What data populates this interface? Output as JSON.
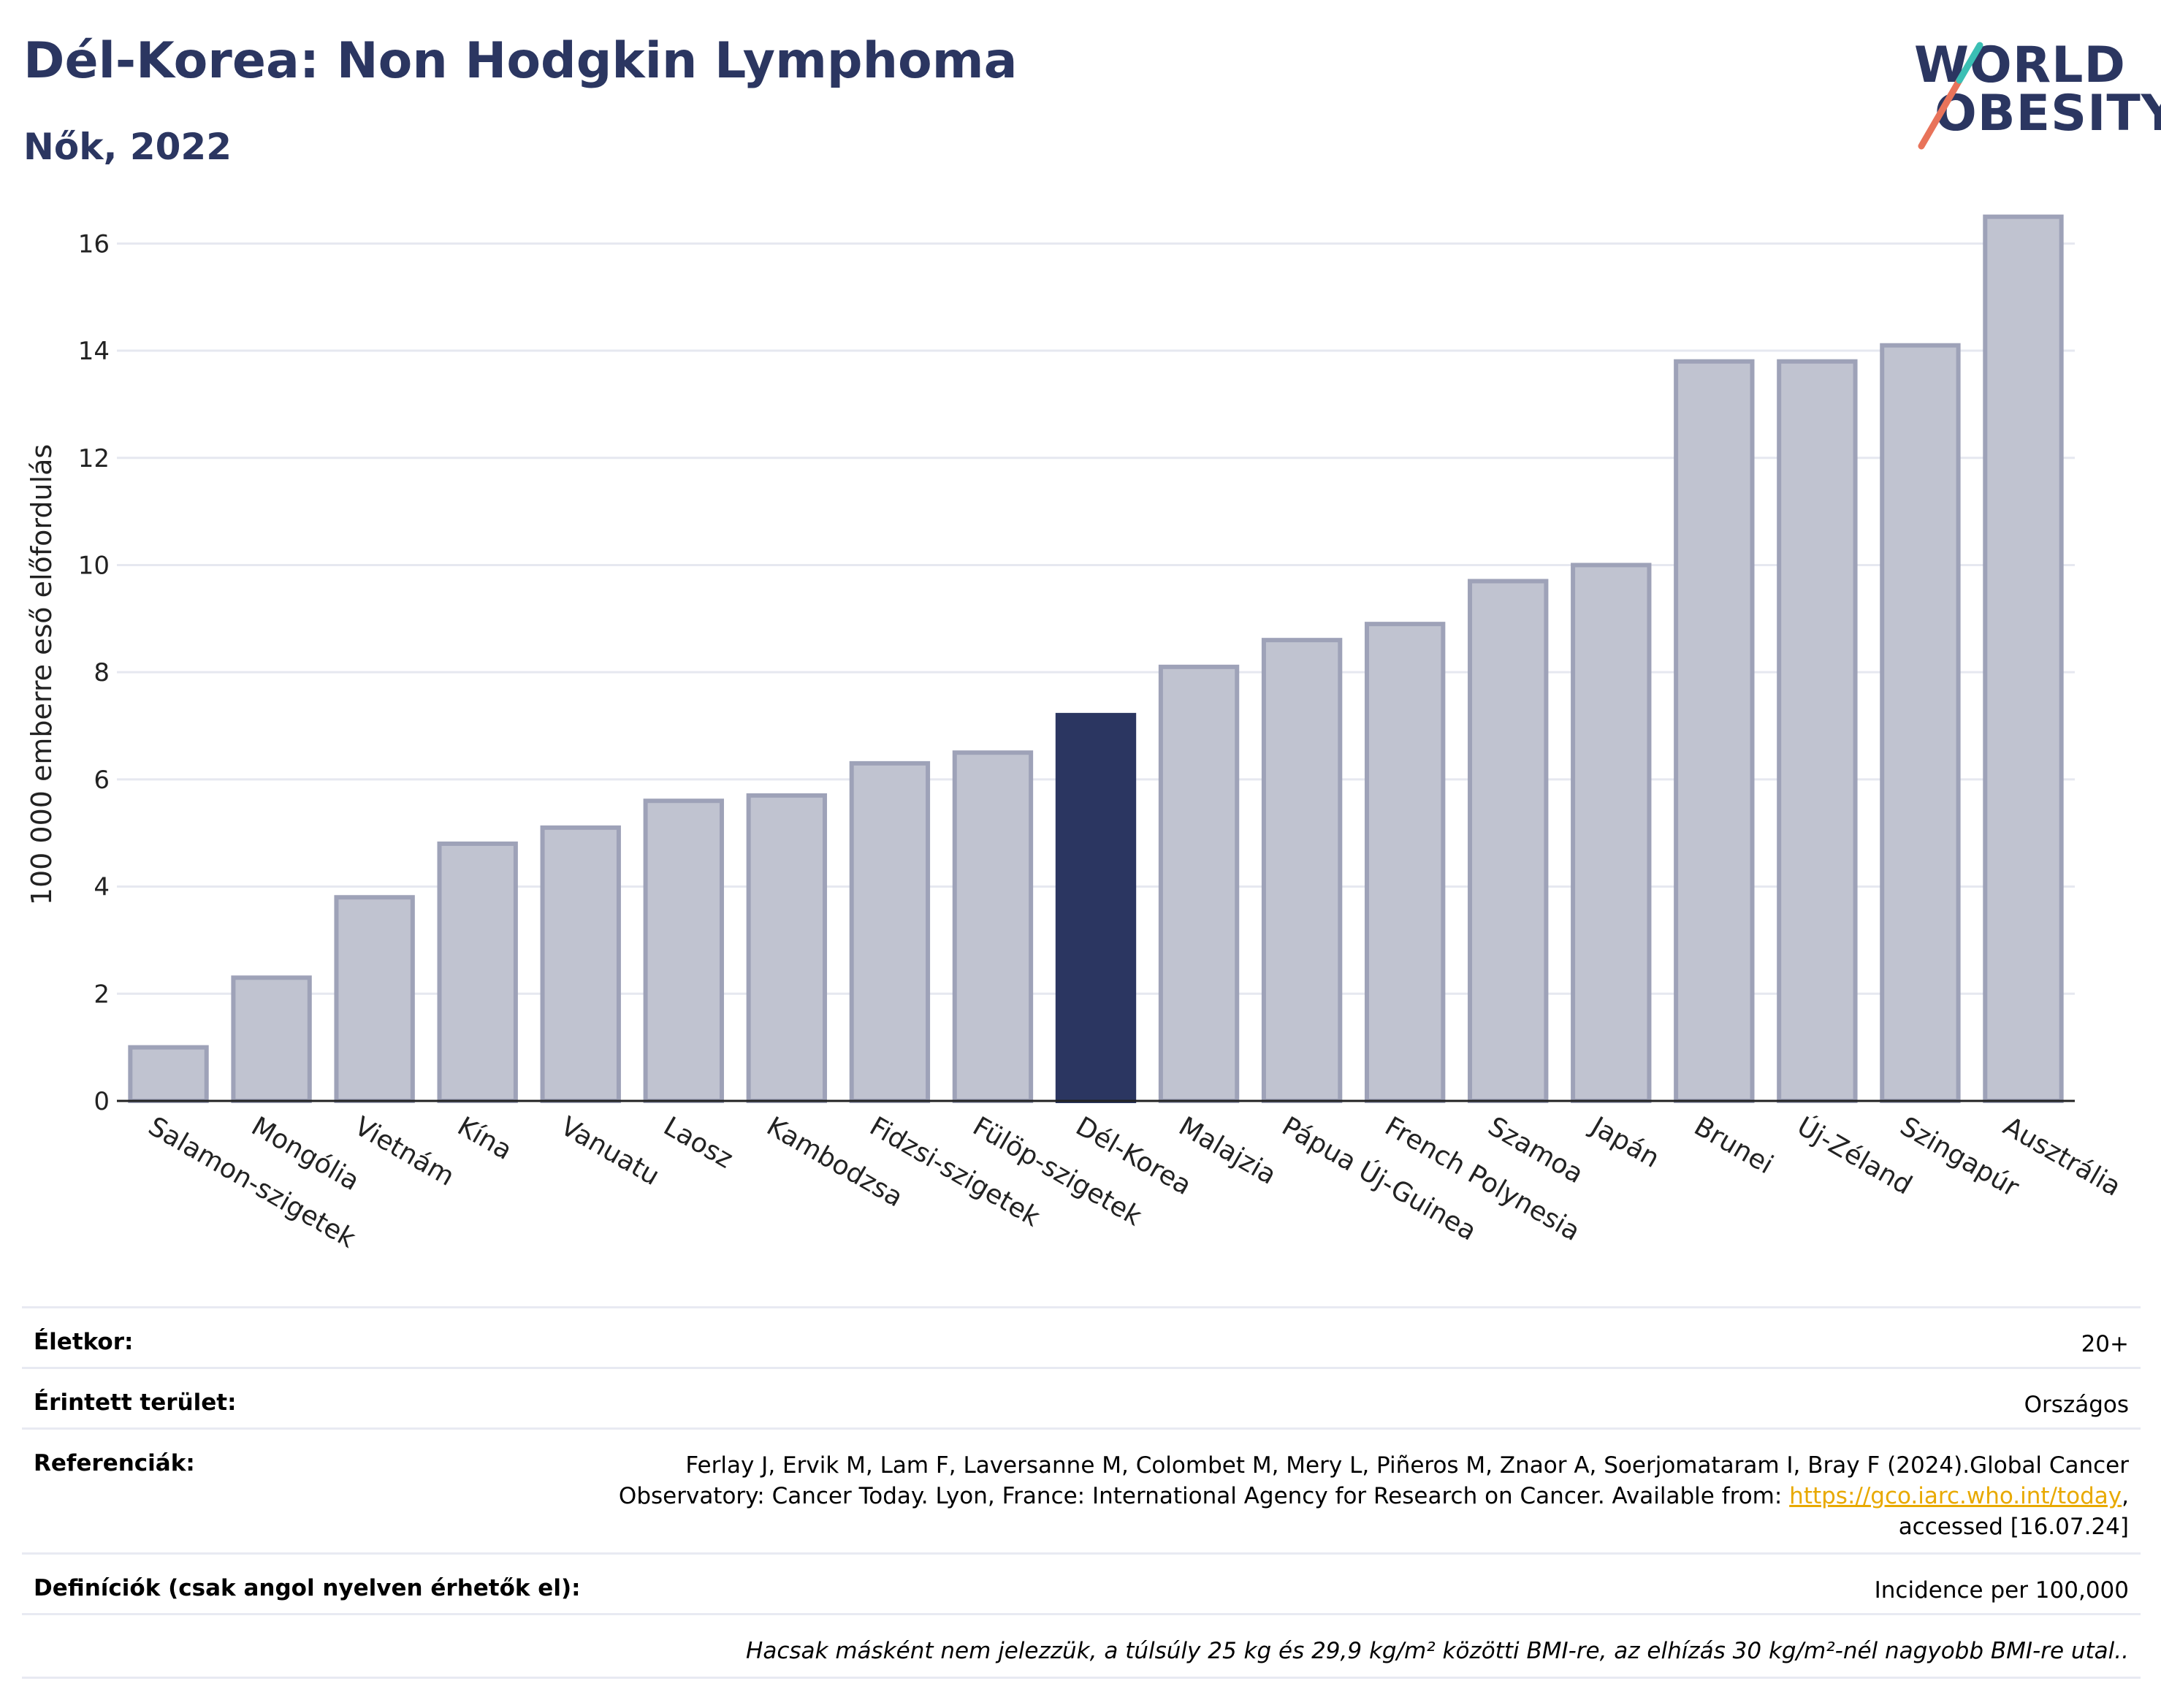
{
  "header": {
    "title": "Dél-Korea: Non Hodgkin Lymphoma",
    "subtitle": "Nők, 2022",
    "logo_line1": "WORLD",
    "logo_line2": "OBESITY"
  },
  "chart_data": {
    "type": "bar",
    "title": "",
    "xlabel": "",
    "ylabel": "100 000 emberre eső előfordulás",
    "ylim": [
      0,
      17
    ],
    "yticks": [
      0,
      2,
      4,
      6,
      8,
      10,
      12,
      14,
      16
    ],
    "grid": true,
    "highlight": "Dél-Korea",
    "colors": {
      "bar": "#c0c3d0",
      "bar_border": "#9ea2b8",
      "highlight": "#2b3661",
      "grid": "#e6e8f0"
    },
    "categories": [
      "Salamon-szigetek",
      "Mongólia",
      "Vietnám",
      "Kína",
      "Vanuatu",
      "Laosz",
      "Kambodzsa",
      "Fidzsi-szigetek",
      "Fülöp-szigetek",
      "Dél-Korea",
      "Malajzia",
      "Pápua Új-Guinea",
      "French Polynesia",
      "Szamoa",
      "Japán",
      "Brunei",
      "Új-Zéland",
      "Szingapúr",
      "Ausztrália"
    ],
    "values": [
      1.0,
      2.3,
      3.8,
      4.8,
      5.1,
      5.6,
      5.7,
      6.3,
      6.5,
      7.2,
      8.1,
      8.6,
      8.9,
      9.7,
      10.0,
      13.8,
      13.8,
      14.1,
      16.5
    ]
  },
  "meta": {
    "age_label": "Életkor:",
    "age_value": "20+",
    "area_label": "Érintett terület:",
    "area_value": "Országos",
    "ref_label": "Referenciák:",
    "ref_line1": "Ferlay J, Ervik M, Lam F, Laversanne M, Colombet M, Mery L, Piñeros M, Znaor A, Soerjomataram I, Bray F (2024).Global Cancer",
    "ref_line2": "Observatory: Cancer Today. Lyon, France: International Agency for Research on Cancer. Available from: ",
    "ref_link": "https://gco.iarc.who.int/today",
    "ref_line2_end": ",",
    "ref_line3": "accessed [16.07.24]",
    "def_label": "Definíciók (csak angol nyelven érhetők el):",
    "def_value": "Incidence per 100,000",
    "note": "Hacsak másként nem jelezzük, a túlsúly 25 kg és 29,9 kg/m² közötti BMI-re, az elhízás 30 kg/m²-nél nagyobb BMI-re utal.."
  }
}
